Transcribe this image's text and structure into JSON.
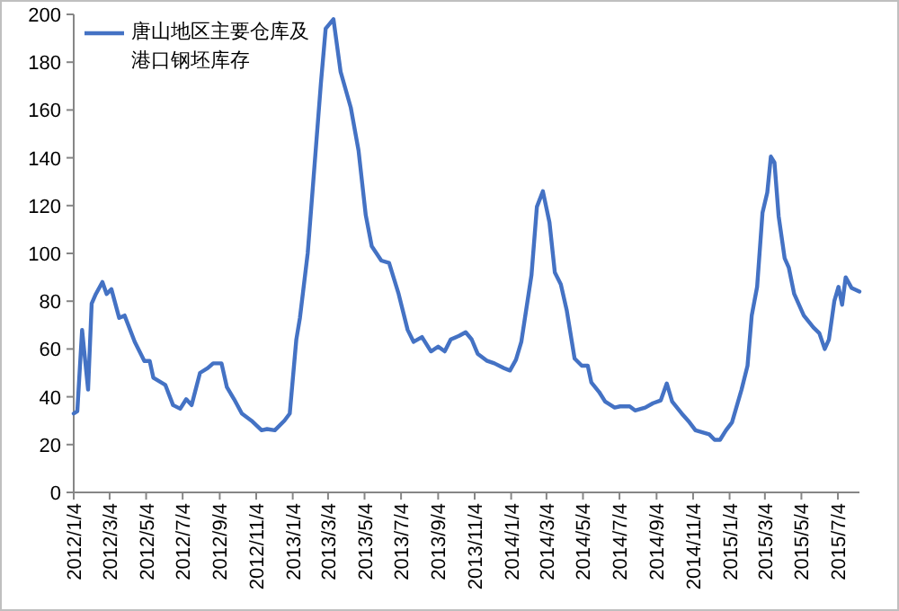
{
  "chart_data": {
    "type": "line",
    "x": [
      "2012-01-04",
      "2012-01-10",
      "2012-01-18",
      "2012-01-28",
      "2012-02-03",
      "2012-02-10",
      "2012-02-21",
      "2012-02-28",
      "2012-03-07",
      "2012-03-20",
      "2012-03-29",
      "2012-04-15",
      "2012-05-01",
      "2012-05-10",
      "2012-05-16",
      "2012-06-05",
      "2012-06-18",
      "2012-06-30",
      "2012-07-10",
      "2012-07-19",
      "2012-08-02",
      "2012-08-15",
      "2012-08-24",
      "2012-09-07",
      "2012-09-16",
      "2012-09-28",
      "2012-10-11",
      "2012-10-27",
      "2012-11-13",
      "2012-11-22",
      "2012-12-05",
      "2012-12-21",
      "2012-12-30",
      "2013-01-10",
      "2013-01-16",
      "2013-01-29",
      "2013-02-20",
      "2013-02-28",
      "2013-03-13",
      "2013-03-25",
      "2013-04-11",
      "2013-04-24",
      "2013-05-06",
      "2013-05-16",
      "2013-06-01",
      "2013-06-14",
      "2013-06-30",
      "2013-07-15",
      "2013-07-25",
      "2013-08-08",
      "2013-08-23",
      "2013-09-04",
      "2013-09-15",
      "2013-09-25",
      "2013-10-09",
      "2013-10-20",
      "2013-10-30",
      "2013-11-09",
      "2013-11-25",
      "2013-12-07",
      "2013-12-23",
      "2014-01-02",
      "2014-01-12",
      "2014-01-21",
      "2014-02-07",
      "2014-02-16",
      "2014-02-26",
      "2014-03-09",
      "2014-03-18",
      "2014-03-28",
      "2014-04-07",
      "2014-04-20",
      "2014-05-02",
      "2014-05-12",
      "2014-05-18",
      "2014-05-31",
      "2014-06-10",
      "2014-06-26",
      "2014-07-05",
      "2014-07-21",
      "2014-07-30",
      "2014-08-16",
      "2014-08-29",
      "2014-09-11",
      "2014-09-21",
      "2014-09-30",
      "2014-10-16",
      "2014-10-29",
      "2014-11-08",
      "2014-12-01",
      "2014-12-10",
      "2014-12-19",
      "2014-12-29",
      "2015-01-08",
      "2015-01-24",
      "2015-02-03",
      "2015-02-10",
      "2015-02-19",
      "2015-02-28",
      "2015-03-08",
      "2015-03-14",
      "2015-03-20",
      "2015-03-27",
      "2015-04-06",
      "2015-04-13",
      "2015-04-22",
      "2015-05-08",
      "2015-05-24",
      "2015-06-03",
      "2015-06-12",
      "2015-06-19",
      "2015-06-28",
      "2015-07-05",
      "2015-07-11",
      "2015-07-17",
      "2015-07-27",
      "2015-08-09"
    ],
    "series": [
      {
        "name": "唐山地区主要仓库及港口钢坯库存",
        "color": "#4472c4",
        "values": [
          33,
          34,
          68,
          43,
          79,
          83,
          88,
          83,
          85,
          73,
          74,
          63,
          55,
          55,
          48,
          45,
          36.5,
          35,
          39,
          36.5,
          50,
          52,
          54,
          54,
          44,
          39,
          33,
          30,
          26,
          26.5,
          26,
          30,
          33,
          64,
          73,
          100,
          171,
          194,
          198,
          176,
          161,
          143,
          116,
          103,
          97,
          96,
          83,
          68,
          63,
          65,
          59,
          61,
          59,
          64,
          65.5,
          67,
          64,
          58,
          55,
          54,
          52,
          51,
          55.5,
          63,
          91,
          119.5,
          126,
          113,
          92,
          87,
          76,
          56,
          53,
          53,
          46,
          42,
          38,
          35.5,
          36,
          36,
          34.3,
          35.5,
          37.3,
          38.5,
          45.6,
          38,
          33,
          29.3,
          26,
          24.3,
          22,
          22,
          26,
          29.3,
          43,
          53,
          74,
          86,
          117,
          125.5,
          140.5,
          138,
          115.5,
          98,
          94,
          83,
          74,
          69,
          66.6,
          60,
          64,
          80,
          86,
          78.5,
          90,
          85.5,
          84
        ]
      }
    ],
    "xlim": [
      "2012-01-04",
      "2015-08-09"
    ],
    "xticks": [
      {
        "value": "2012-01-04",
        "label": "2012/1/4"
      },
      {
        "value": "2012-03-04",
        "label": "2012/3/4"
      },
      {
        "value": "2012-05-04",
        "label": "2012/5/4"
      },
      {
        "value": "2012-07-04",
        "label": "2012/7/4"
      },
      {
        "value": "2012-09-04",
        "label": "2012/9/4"
      },
      {
        "value": "2012-11-04",
        "label": "2012/11/4"
      },
      {
        "value": "2013-01-04",
        "label": "2013/1/4"
      },
      {
        "value": "2013-03-04",
        "label": "2013/3/4"
      },
      {
        "value": "2013-05-04",
        "label": "2013/5/4"
      },
      {
        "value": "2013-07-04",
        "label": "2013/7/4"
      },
      {
        "value": "2013-09-04",
        "label": "2013/9/4"
      },
      {
        "value": "2013-11-04",
        "label": "2013/11/4"
      },
      {
        "value": "2014-01-04",
        "label": "2014/1/4"
      },
      {
        "value": "2014-03-04",
        "label": "2014/3/4"
      },
      {
        "value": "2014-05-04",
        "label": "2014/5/4"
      },
      {
        "value": "2014-07-04",
        "label": "2014/7/4"
      },
      {
        "value": "2014-09-04",
        "label": "2014/9/4"
      },
      {
        "value": "2014-11-04",
        "label": "2014/11/4"
      },
      {
        "value": "2015-01-04",
        "label": "2015/1/4"
      },
      {
        "value": "2015-03-04",
        "label": "2015/3/4"
      },
      {
        "value": "2015-05-04",
        "label": "2015/5/4"
      },
      {
        "value": "2015-07-04",
        "label": "2015/7/4"
      }
    ],
    "ylim": [
      0,
      200
    ],
    "yticks": [
      0,
      20,
      40,
      60,
      80,
      100,
      120,
      140,
      160,
      180,
      200
    ],
    "grid": false,
    "legend": "top left",
    "marker": "none",
    "line_style": "solid"
  }
}
